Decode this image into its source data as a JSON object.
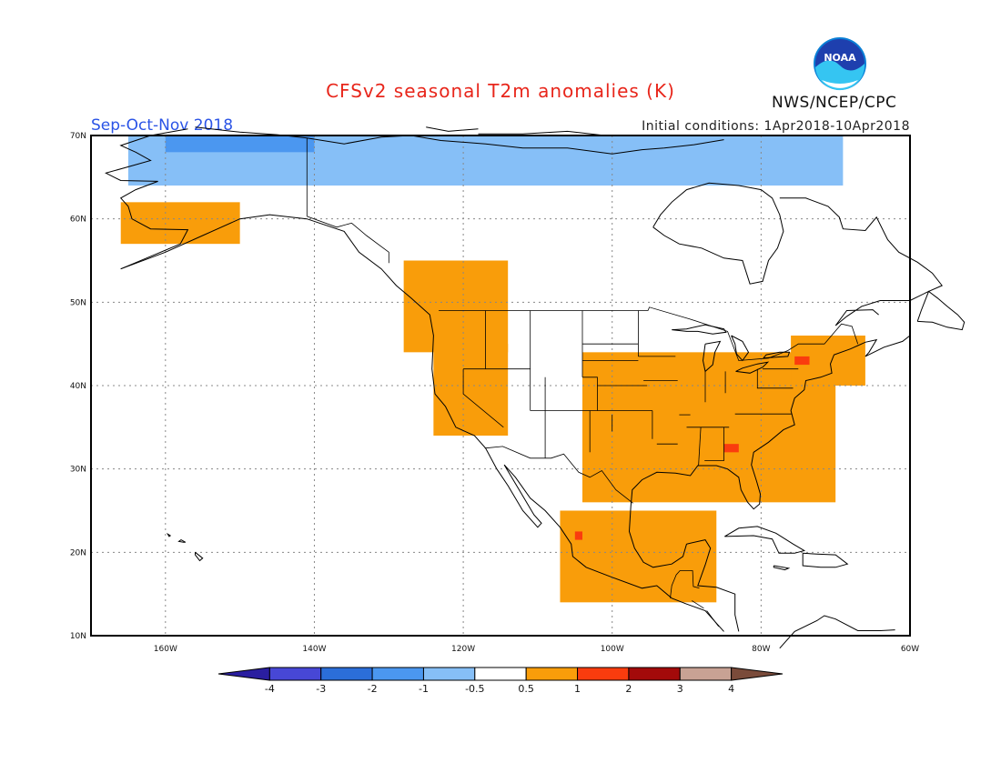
{
  "title": "CFSv2 seasonal T2m anomalies (K)",
  "season": "Sep-Oct-Nov 2018",
  "initial_conditions": "Initial conditions: 1Apr2018-10Apr2018",
  "agency": "NWS/NCEP/CPC",
  "logo_text": "NOAA",
  "map": {
    "lon_labels": [
      "160W",
      "140W",
      "120W",
      "100W",
      "80W",
      "60W"
    ],
    "lat_labels": [
      "70N",
      "60N",
      "50N",
      "40N",
      "30N",
      "20N",
      "10N"
    ],
    "lon_values": [
      -160,
      -140,
      -120,
      -100,
      -80,
      -60
    ],
    "lat_values": [
      70,
      60,
      50,
      40,
      30,
      20,
      10
    ],
    "lon_range": [
      -170,
      -60
    ],
    "lat_range": [
      10,
      70
    ],
    "grid": "dotted",
    "anomaly_regions": [
      {
        "name": "Arctic cold band",
        "class": -1,
        "lon": [
          -165,
          -69
        ],
        "lat": [
          64,
          70
        ]
      },
      {
        "name": "Beaufort Sea cold core",
        "class": -2,
        "lon": [
          -160,
          -140
        ],
        "lat": [
          68,
          70
        ]
      },
      {
        "name": "Alaska warm",
        "class": 1,
        "lon": [
          -166,
          -150
        ],
        "lat": [
          57,
          62
        ]
      },
      {
        "name": "Western Canada and Pacific NW warm",
        "class": 1,
        "lon": [
          -128,
          -114
        ],
        "lat": [
          44,
          55
        ]
      },
      {
        "name": "California and Great Basin warm",
        "class": 1,
        "lon": [
          -124,
          -114
        ],
        "lat": [
          34,
          45
        ]
      },
      {
        "name": "Central and Eastern US warm",
        "class": 1,
        "lon": [
          -104,
          -70
        ],
        "lat": [
          26,
          44
        ]
      },
      {
        "name": "Mexico warm",
        "class": 1,
        "lon": [
          -107,
          -86
        ],
        "lat": [
          14,
          25
        ]
      },
      {
        "name": "New England warm",
        "class": 1,
        "lon": [
          -76,
          -66
        ],
        "lat": [
          40,
          46
        ]
      },
      {
        "name": "New York hotspot",
        "class": 2,
        "lon": [
          -75.5,
          -73.5
        ],
        "lat": [
          42.5,
          43.5
        ]
      },
      {
        "name": "Georgia hotspot",
        "class": 2,
        "lon": [
          -85,
          -83
        ],
        "lat": [
          32,
          33
        ]
      },
      {
        "name": "Jalisco hotspot",
        "class": 2,
        "lon": [
          -105,
          -104
        ],
        "lat": [
          21.5,
          22.5
        ]
      }
    ]
  },
  "colorbar": {
    "labels": [
      "-4",
      "-3",
      "-2",
      "-1",
      "-0.5",
      "0.5",
      "1",
      "2",
      "3",
      "4"
    ],
    "colors": [
      "#2a1ea0",
      "#4747d6",
      "#2b6ed9",
      "#4b97f0",
      "#86bff7",
      "#ffffff",
      "#f99d0a",
      "#fa3c0e",
      "#a30a0a",
      "#c8a294",
      "#7a4b3a"
    ]
  }
}
